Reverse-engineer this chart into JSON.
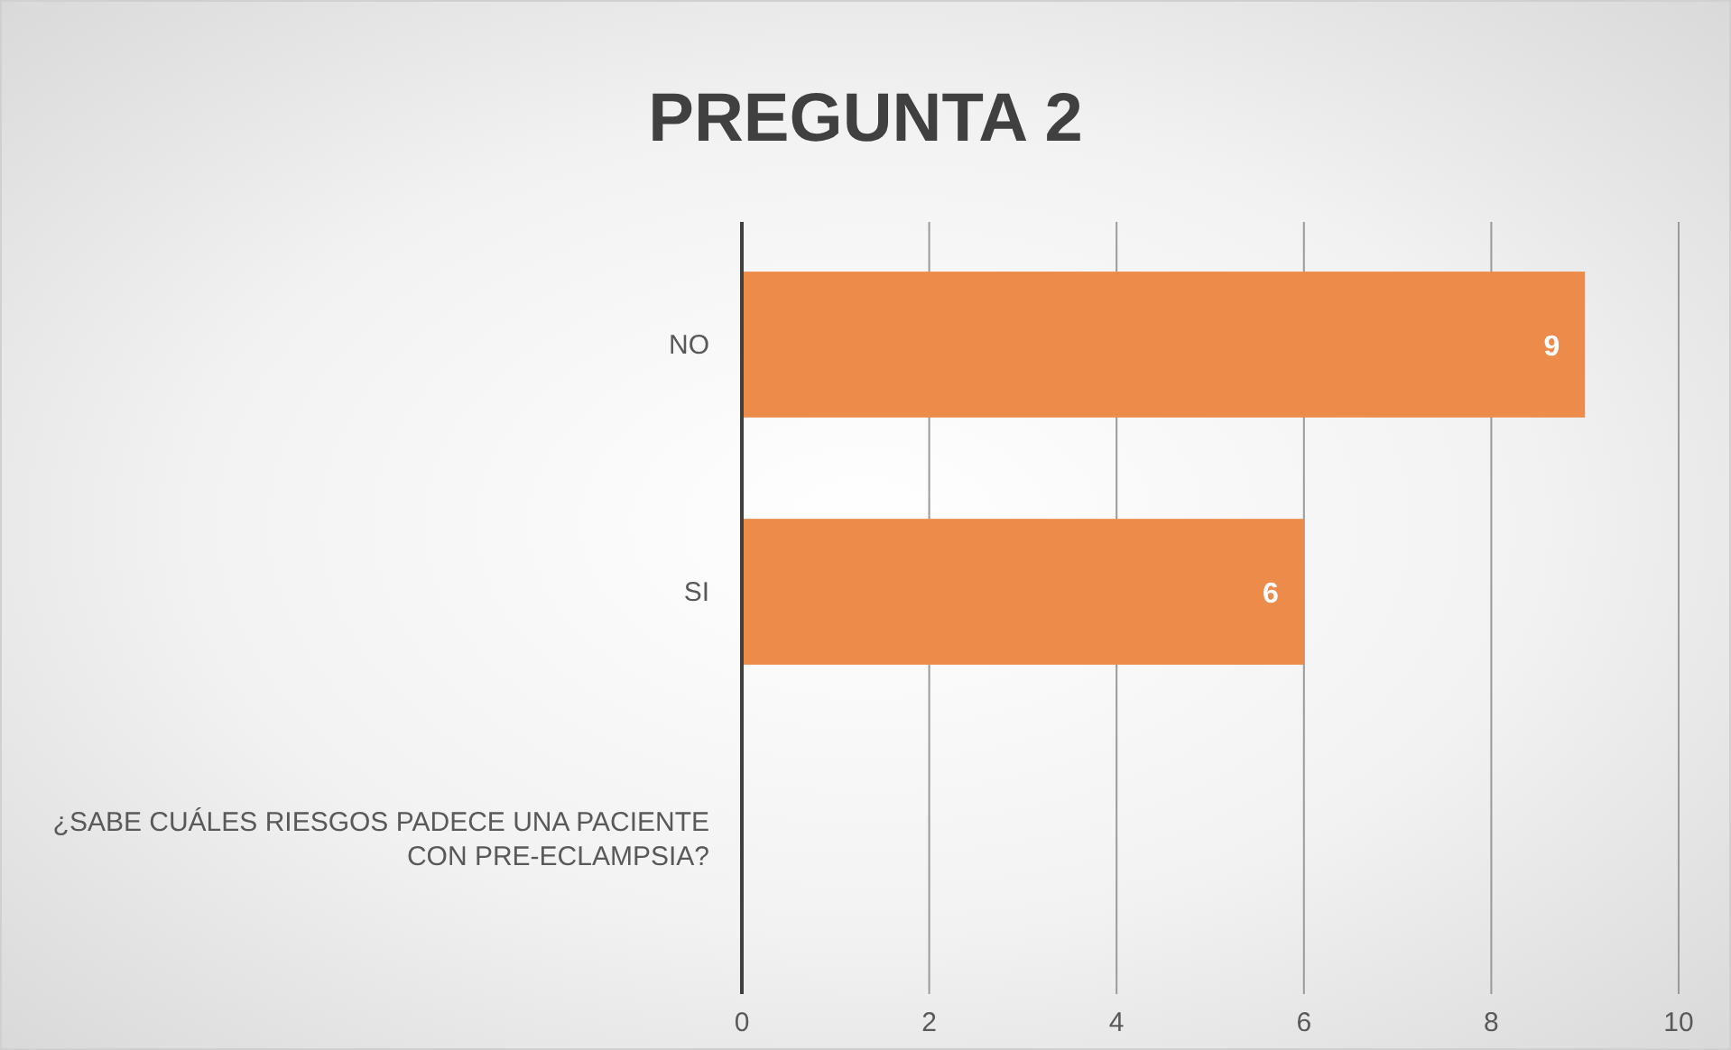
{
  "chart_data": {
    "type": "bar",
    "orientation": "horizontal",
    "title": "PREGUNTA 2",
    "categories": [
      "NO",
      "SI",
      "¿SABE CUÁLES RIESGOS PADECE UNA PACIENTE CON PRE-ECLAMPSIA?"
    ],
    "values": [
      9,
      6,
      null
    ],
    "value_labels": [
      "9",
      "6",
      null
    ],
    "color": "#ed8b4a",
    "xlim": [
      0,
      10
    ],
    "xticks": [
      0,
      2,
      4,
      6,
      8,
      10
    ],
    "grid": "x"
  }
}
